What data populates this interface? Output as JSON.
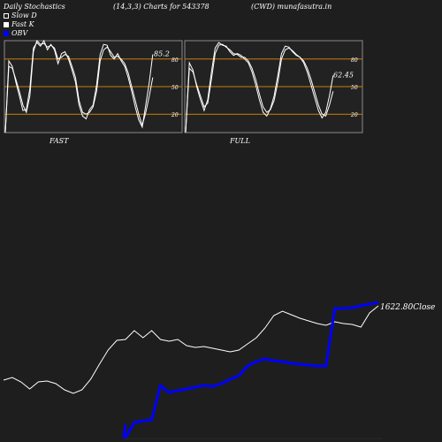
{
  "header": {
    "title": "Daily Stochastics",
    "params": "(14,3,3) Charts for 543378",
    "symbol": "(CWD) munafasutra.in"
  },
  "legend": {
    "items": [
      {
        "label": "Slow  D",
        "swatch": "outline"
      },
      {
        "label": "Fast K",
        "swatch": "filled"
      },
      {
        "label": "OBV",
        "swatch": "blue"
      }
    ]
  },
  "colors": {
    "background": "#1e1e1e",
    "panel": "#222222",
    "panel_border": "#8a8a8a",
    "level_line": "#c87f0a",
    "line": "#ffffff",
    "obv": "#0000ff"
  },
  "chart_data": [
    {
      "type": "line",
      "panel": "FAST",
      "title": "FAST",
      "ylim": [
        0,
        100
      ],
      "levels": [
        80,
        50,
        20
      ],
      "level_labels": [
        "80",
        "50",
        "20"
      ],
      "last_value_label": "85.2",
      "series": [
        {
          "role": "slow-d",
          "values": [
            0,
            72,
            70,
            58,
            45,
            30,
            22,
            40,
            88,
            100,
            96,
            97,
            93,
            95,
            92,
            80,
            82,
            85,
            83,
            72,
            60,
            35,
            22,
            20,
            22,
            28,
            45,
            78,
            90,
            93,
            88,
            82,
            83,
            80,
            75,
            65,
            50,
            35,
            20,
            8,
            22,
            40,
            60
          ]
        },
        {
          "role": "fast-k",
          "values": [
            0,
            78,
            72,
            55,
            40,
            24,
            25,
            48,
            92,
            98,
            94,
            100,
            90,
            96,
            90,
            75,
            86,
            88,
            80,
            68,
            55,
            30,
            18,
            15,
            25,
            30,
            52,
            85,
            96,
            95,
            84,
            80,
            86,
            78,
            72,
            60,
            45,
            28,
            14,
            6,
            30,
            55,
            85
          ]
        }
      ]
    },
    {
      "type": "line",
      "panel": "FULL",
      "title": "FULL",
      "ylim": [
        0,
        100
      ],
      "levels": [
        80,
        50,
        20
      ],
      "level_labels": [
        "80",
        "50",
        "20"
      ],
      "last_value_label": "62.45",
      "series": [
        {
          "role": "slow-d",
          "values": [
            0,
            70,
            66,
            52,
            40,
            28,
            32,
            58,
            86,
            95,
            96,
            93,
            90,
            86,
            85,
            82,
            82,
            78,
            70,
            58,
            42,
            28,
            22,
            25,
            35,
            55,
            80,
            90,
            92,
            89,
            85,
            82,
            78,
            70,
            58,
            44,
            30,
            20,
            18,
            30,
            45
          ]
        },
        {
          "role": "fast-k",
          "values": [
            0,
            76,
            68,
            50,
            36,
            24,
            36,
            66,
            92,
            98,
            95,
            94,
            88,
            84,
            86,
            84,
            80,
            76,
            66,
            52,
            36,
            22,
            18,
            26,
            40,
            62,
            86,
            94,
            93,
            88,
            84,
            82,
            76,
            66,
            52,
            38,
            24,
            16,
            22,
            40,
            62
          ]
        }
      ]
    },
    {
      "type": "line",
      "panel": "price-obv",
      "last_value_label": "1622.80Close",
      "series": [
        {
          "role": "close",
          "values": [
            430,
            427,
            432,
            440,
            432,
            431,
            434,
            441,
            445,
            441,
            429,
            412,
            396,
            385,
            384,
            374,
            382,
            374,
            384,
            386,
            384,
            391,
            393,
            392,
            394,
            396,
            398,
            396,
            389,
            382,
            371,
            357,
            352,
            356,
            360,
            363,
            366,
            368,
            364,
            366,
            367,
            370,
            354,
            346
          ]
        },
        {
          "role": "obv",
          "values": [
            null,
            null,
            null,
            null,
            null,
            null,
            null,
            null,
            null,
            null,
            null,
            null,
            null,
            null,
            495,
            478,
            476,
            475,
            436,
            444,
            442,
            440,
            438,
            436,
            437,
            434,
            429,
            425,
            414,
            409,
            406,
            408,
            409,
            411,
            412,
            413,
            414,
            414,
            349,
            349,
            348,
            346,
            344,
            342
          ]
        }
      ]
    }
  ],
  "panel_titles": {
    "fast": "FAST",
    "full": "FULL"
  }
}
